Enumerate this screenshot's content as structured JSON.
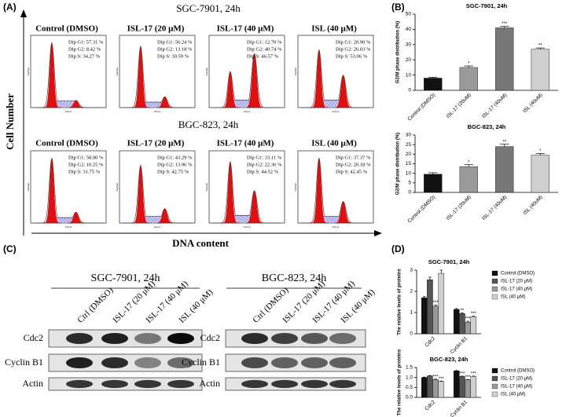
{
  "figure": {
    "panel_a": {
      "label": "(A)",
      "y_label": "Cell Number",
      "x_label": "DNA content",
      "histogram_y_label": "Number",
      "histogram_x_label": "FL2-A",
      "groups": [
        {
          "title": "SGC-7901, 24h",
          "samples": [
            {
              "title": "Control (DMSO)",
              "stats": [
                "Dip G1: 57.31 %",
                "Dip G2: 8.42 %",
                "Dip S: 34.27 %"
              ]
            },
            {
              "title": "ISL-17 (20 μM)",
              "stats": [
                "Dip G1: 56.24 %",
                "Dip G2: 13.18 %",
                "Dip S: 30.59 %"
              ]
            },
            {
              "title": "ISL-17 (40 μM)",
              "stats": [
                "Dip G1: 12.70 %",
                "Dip G2: 40.74 %",
                "Dip S: 46.57 %"
              ]
            },
            {
              "title": "ISL (40 μM)",
              "stats": [
                "Dip G1: 20.90 %",
                "Dip G2: 26.03 %",
                "Dip S: 53.06 %"
              ]
            }
          ]
        },
        {
          "title": "BGC-823, 24h",
          "samples": [
            {
              "title": "Control (DMSO)",
              "stats": [
                "Dip G1: 58.00 %",
                "Dip G2: 10.25 %",
                "Dip S: 31.75 %"
              ]
            },
            {
              "title": "ISL-17 (20 μM)",
              "stats": [
                "Dip G1: 43.29 %",
                "Dip G2: 13.96 %",
                "Dip S: 42.75 %"
              ]
            },
            {
              "title": "ISL-17 (40 μM)",
              "stats": [
                "Dip G1: 33.11 %",
                "Dip G2: 22.36 %",
                "Dip S: 44.52 %"
              ]
            },
            {
              "title": "ISL (40 μM)",
              "stats": [
                "Dip G1: 37.37 %",
                "Dip G2: 20.18 %",
                "Dip S: 42.45 %"
              ]
            }
          ]
        }
      ]
    },
    "panel_b": {
      "label": "(B)"
    },
    "panel_c": {
      "label": "(C)",
      "blots": [
        {
          "title": "SGC-7901, 24h",
          "lanes": [
            "Ctrl (DMSO)",
            "ISL-17 (20 μM)",
            "ISL-17 (40 μM)",
            "ISL (40 μM)"
          ],
          "rows": [
            "Cdc2",
            "Cyclin B1",
            "Actin"
          ]
        },
        {
          "title": "BGC-823, 24h",
          "lanes": [
            "Ctrl (DMSO)",
            "ISL-17 (20 μM)",
            "ISL-17 (40 μM)",
            "ISL (40 μM)"
          ],
          "rows": [
            "Cdc2",
            "Cyclin B1",
            "Actin"
          ]
        }
      ]
    },
    "panel_d": {
      "label": "(D)"
    }
  },
  "chart_data": [
    {
      "type": "bar",
      "title": "SGC-7901, 24h",
      "y_label": "G2/M phase distribution (%)",
      "categories": [
        "Control (DMSO)",
        "ISL-17 (20uM)",
        "ISL-17 (40uM)",
        "ISL (40uM)"
      ],
      "values": [
        8,
        15,
        41,
        27
      ],
      "errors": [
        0.6,
        1,
        1,
        0.8
      ],
      "annotations": [
        null,
        "*",
        "***",
        "**"
      ],
      "colors": [
        "#111111",
        "#9a9a9a",
        "#777777",
        "#cfcfcf"
      ],
      "ylim": [
        0,
        50
      ],
      "yticks": [
        0,
        10,
        20,
        30,
        40,
        50
      ]
    },
    {
      "type": "bar",
      "title": "BGC-823, 24h",
      "y_label": "G2/M phase distribution (%)",
      "categories": [
        "Control (DMSO)",
        "ISL-17 (20uM)",
        "ISL-17 (40uM)",
        "ISL (40uM)"
      ],
      "values": [
        9.5,
        13.5,
        24,
        19.5
      ],
      "errors": [
        0.8,
        1,
        1.2,
        0.8
      ],
      "annotations": [
        null,
        "*",
        "**",
        "*"
      ],
      "colors": [
        "#111111",
        "#9a9a9a",
        "#777777",
        "#cfcfcf"
      ],
      "ylim": [
        0,
        30
      ],
      "yticks": [
        0,
        5,
        10,
        15,
        20,
        25,
        30
      ]
    },
    {
      "type": "bar",
      "title": "SGC-7901, 24h",
      "y_label": "The relative levels of proteins",
      "legend": "right",
      "categories": [
        "Cdc2",
        "Cyclin B1"
      ],
      "ylim": [
        0,
        3
      ],
      "yticks": [
        0,
        1,
        2,
        3
      ],
      "series": [
        {
          "name": "Control (DMSO)",
          "color": "#111111",
          "values": [
            1.7,
            1.15
          ],
          "errors": [
            0.05,
            0.04
          ],
          "annotations": [
            null,
            null
          ]
        },
        {
          "name": "ISL-17 (20 μM)",
          "color": "#555555",
          "values": [
            2.55,
            0.95
          ],
          "errors": [
            0.12,
            0.04
          ],
          "annotations": [
            null,
            "**"
          ]
        },
        {
          "name": "ISL-17 (40 μM)",
          "color": "#999999",
          "values": [
            1.3,
            0.55
          ],
          "errors": [
            0.05,
            0.04
          ],
          "annotations": [
            "***",
            "***"
          ]
        },
        {
          "name": "ISL (40 μM)",
          "color": "#d0d0d0",
          "values": [
            2.85,
            0.8
          ],
          "errors": [
            0.15,
            0.04
          ],
          "annotations": [
            null,
            "***"
          ]
        }
      ]
    },
    {
      "type": "bar",
      "title": "BGC-823, 24h",
      "y_label": "The relative levels of proteins",
      "legend": "right",
      "categories": [
        "Cdc2",
        "Cyclin B1"
      ],
      "ylim": [
        0,
        1.5
      ],
      "yticks": [
        {
          "value": 0,
          "label": "0.0"
        },
        {
          "value": 0.5,
          "label": "0.5"
        },
        {
          "value": 1,
          "label": "1.0"
        },
        {
          "value": 1.5,
          "label": "1.5"
        }
      ],
      "series": [
        {
          "name": "Control (DMSO)",
          "color": "#111111",
          "values": [
            1.0,
            1.33
          ],
          "errors": [
            0.02,
            0.02
          ],
          "annotations": [
            null,
            null
          ]
        },
        {
          "name": "ISL-17 (20 μM)",
          "color": "#555555",
          "values": [
            1.08,
            1.05
          ],
          "errors": [
            0.02,
            0.02
          ],
          "annotations": [
            null,
            "***"
          ]
        },
        {
          "name": "ISL-17 (40 μM)",
          "color": "#999999",
          "values": [
            0.9,
            0.88
          ],
          "errors": [
            0.02,
            0.02
          ],
          "annotations": [
            "***",
            "***"
          ]
        },
        {
          "name": "ISL (40 μM)",
          "color": "#d0d0d0",
          "values": [
            0.8,
            1.05
          ],
          "errors": [
            0.02,
            0.02
          ],
          "annotations": [
            "***",
            "***"
          ]
        }
      ]
    }
  ]
}
